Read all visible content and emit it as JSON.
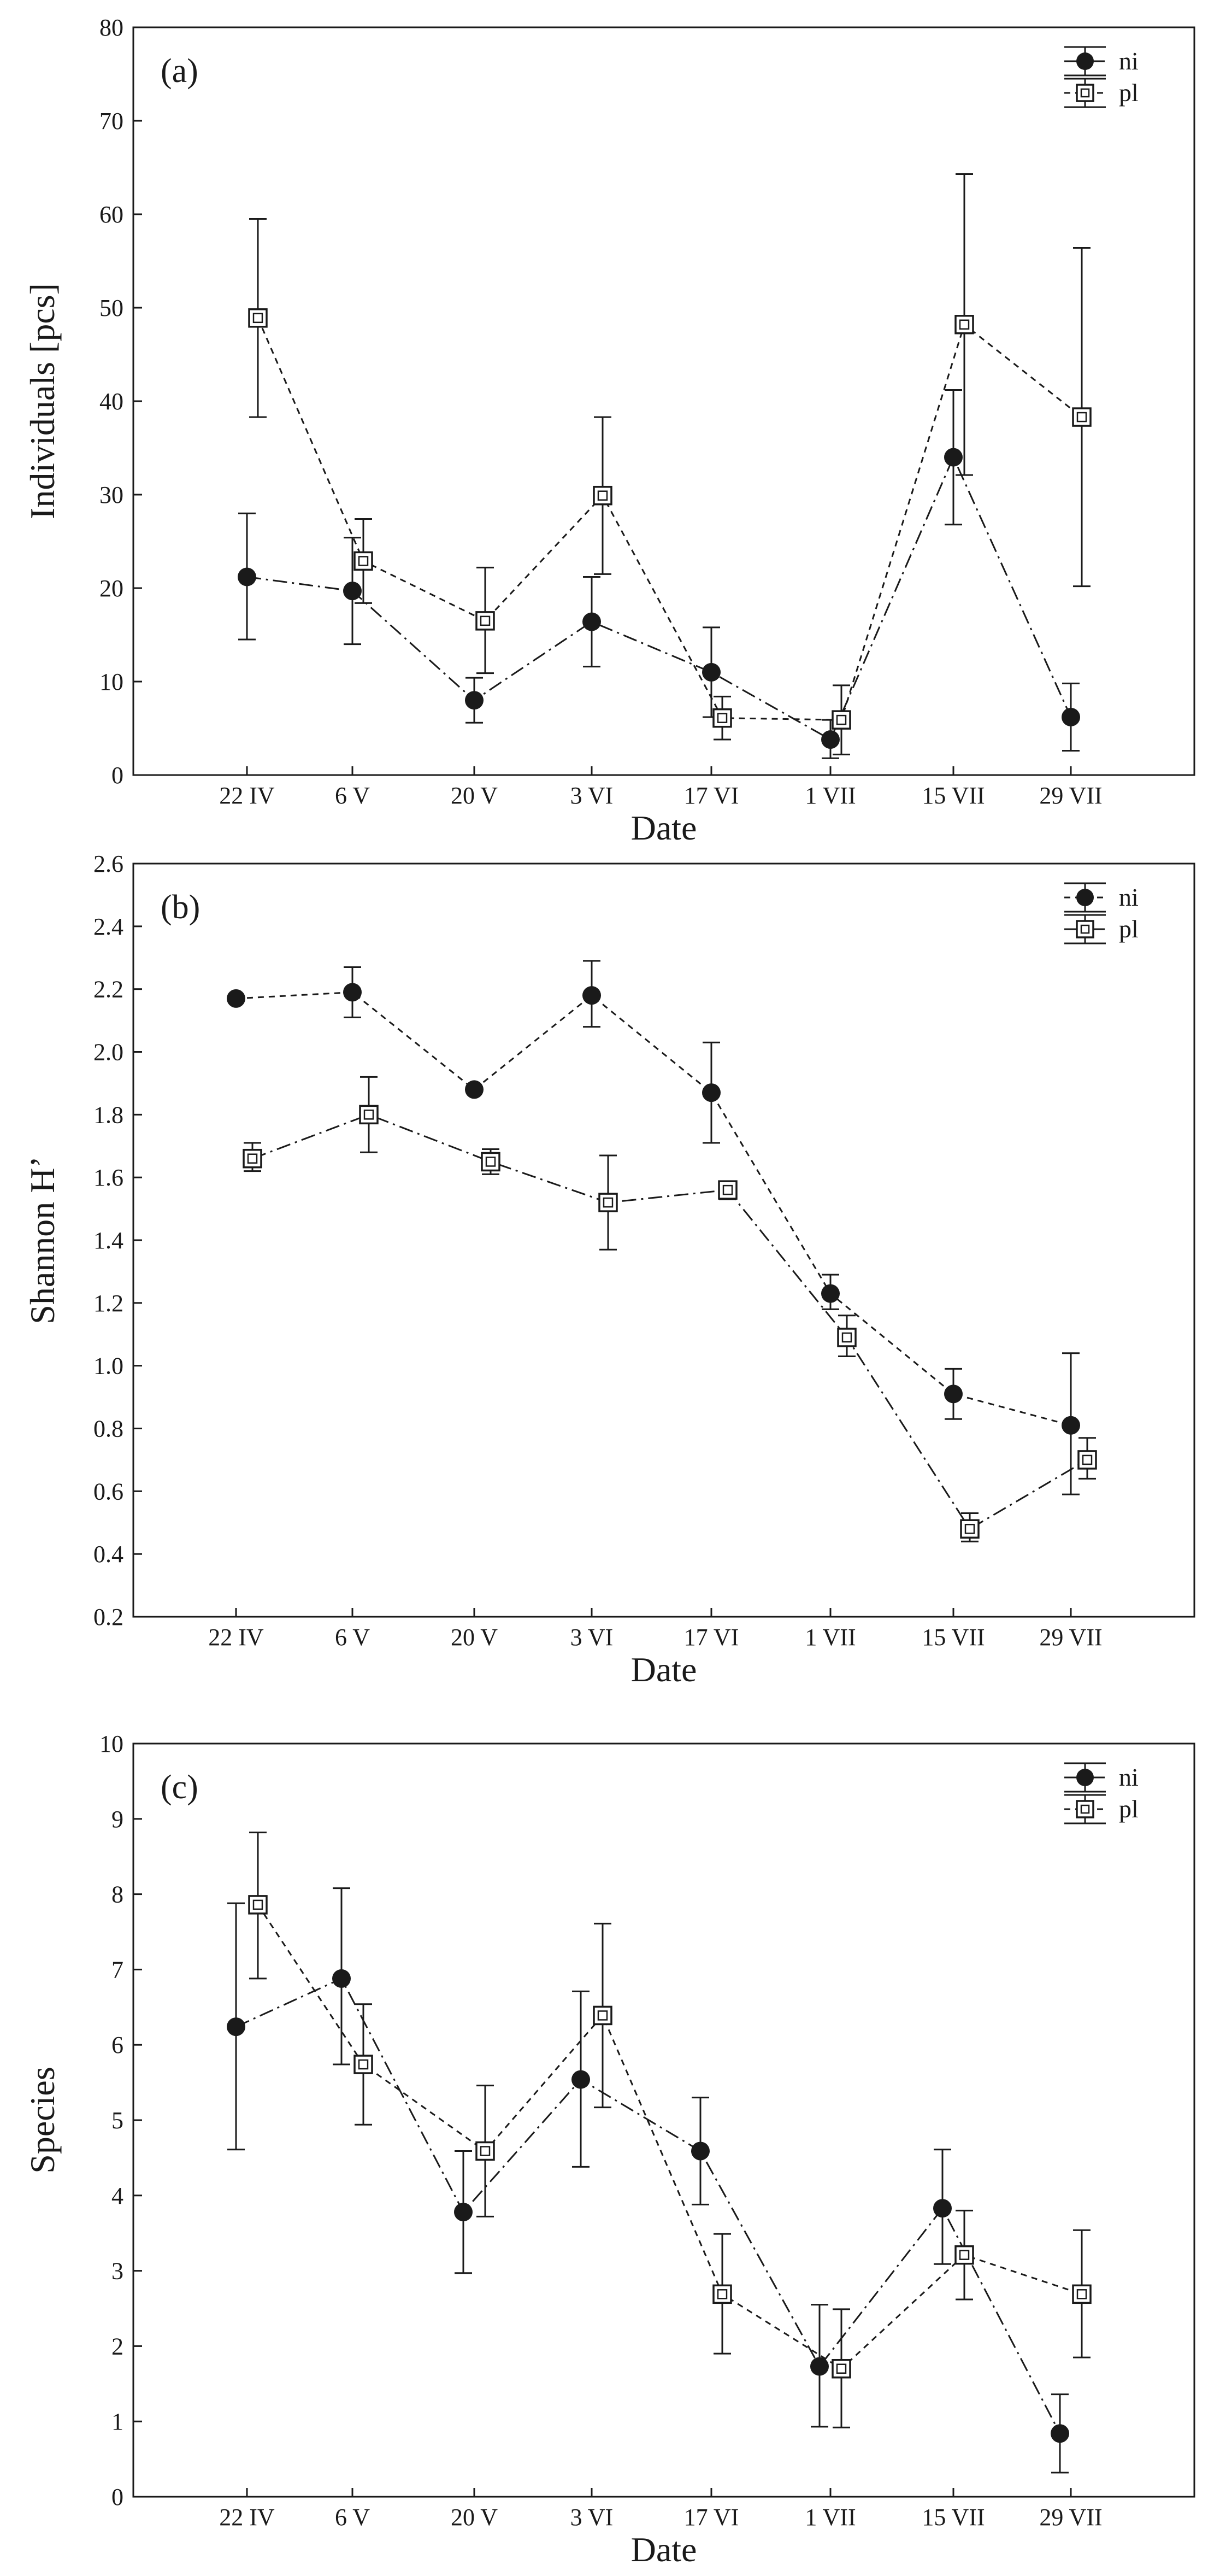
{
  "chart_data": [
    {
      "type": "line",
      "panel_label": "(a)",
      "xlabel": "Date",
      "ylabel": "Individuals [pcs]",
      "categories": [
        "22 IV",
        "6 V",
        "20 V",
        "3 VI",
        "17 VI",
        "1 VII",
        "15 VII",
        "29 VII"
      ],
      "ylim": [
        0,
        80
      ],
      "yticks": [
        "0",
        "10",
        "20",
        "30",
        "40",
        "50",
        "60",
        "70",
        "80"
      ],
      "legend_position": "top-right",
      "series": [
        {
          "name": "ni",
          "marker": "filled-circle",
          "line_style": "long-dash",
          "values": [
            21.2,
            19.7,
            8.0,
            16.4,
            11.0,
            3.8,
            34.0,
            6.2
          ],
          "upper": [
            28.0,
            25.4,
            10.4,
            21.2,
            15.8,
            5.9,
            41.2,
            9.8
          ],
          "lower": [
            14.5,
            14.0,
            5.6,
            11.6,
            6.2,
            1.8,
            26.8,
            2.6
          ]
        },
        {
          "name": "pl",
          "marker": "open-square",
          "line_style": "short-dash",
          "values": [
            48.9,
            22.9,
            16.5,
            29.9,
            6.1,
            5.9,
            48.2,
            38.3
          ],
          "upper": [
            59.5,
            27.4,
            22.2,
            38.3,
            8.4,
            9.6,
            64.3,
            56.4
          ],
          "lower": [
            38.3,
            18.4,
            10.9,
            21.5,
            3.8,
            2.2,
            32.1,
            20.2
          ]
        }
      ]
    },
    {
      "type": "line",
      "panel_label": "(b)",
      "xlabel": "Date",
      "ylabel": "Shannon H’",
      "categories": [
        "22 IV",
        "6 V",
        "20 V",
        "3 VI",
        "17 VI",
        "1 VII",
        "15 VII",
        "29 VII"
      ],
      "ylim": [
        0.2,
        2.6
      ],
      "yticks": [
        "0.2",
        "0.4",
        "0.6",
        "0.8",
        "1.0",
        "1.2",
        "1.4",
        "1.6",
        "1.8",
        "2.0",
        "2.2",
        "2.4",
        "2.6"
      ],
      "legend_position": "top-right",
      "series": [
        {
          "name": "ni",
          "marker": "filled-circle",
          "line_style": "short-dash",
          "values": [
            2.17,
            2.19,
            1.88,
            2.18,
            1.87,
            1.23,
            0.91,
            0.81
          ],
          "upper": [
            2.17,
            2.27,
            1.88,
            2.29,
            2.03,
            1.29,
            0.99,
            1.04
          ],
          "lower": [
            2.17,
            2.11,
            1.88,
            2.08,
            1.71,
            1.18,
            0.83,
            0.59
          ]
        },
        {
          "name": "pl",
          "marker": "open-square",
          "line_style": "long-dash",
          "values": [
            1.66,
            1.8,
            1.65,
            1.52,
            1.56,
            1.09,
            0.48,
            0.7
          ],
          "upper": [
            1.71,
            1.92,
            1.69,
            1.67,
            1.58,
            1.16,
            0.53,
            0.77
          ],
          "lower": [
            1.62,
            1.68,
            1.61,
            1.37,
            1.53,
            1.03,
            0.44,
            0.64
          ]
        }
      ]
    },
    {
      "type": "line",
      "panel_label": "(c)",
      "xlabel": "Date",
      "ylabel": "Species",
      "categories": [
        "22 IV",
        "6 V",
        "20 V",
        "3 VI",
        "17 VI",
        "1 VII",
        "15 VII",
        "29 VII"
      ],
      "ylim": [
        0,
        10
      ],
      "yticks": [
        "0",
        "1",
        "2",
        "3",
        "4",
        "5",
        "6",
        "7",
        "8",
        "9",
        "10"
      ],
      "legend_position": "top-right",
      "series": [
        {
          "name": "ni",
          "marker": "filled-circle",
          "line_style": "long-dash",
          "values": [
            6.24,
            6.88,
            3.78,
            5.54,
            4.59,
            1.73,
            3.83,
            0.84
          ],
          "upper": [
            7.88,
            8.08,
            4.59,
            6.71,
            5.3,
            2.55,
            4.61,
            1.36
          ],
          "lower": [
            4.61,
            5.74,
            2.97,
            4.38,
            3.88,
            0.93,
            3.09,
            0.32
          ]
        },
        {
          "name": "pl",
          "marker": "open-square",
          "line_style": "short-dash",
          "values": [
            7.86,
            5.74,
            4.59,
            6.39,
            2.69,
            1.7,
            3.21,
            2.69
          ],
          "upper": [
            8.82,
            6.54,
            5.46,
            7.61,
            3.49,
            2.49,
            3.8,
            3.54
          ],
          "lower": [
            6.88,
            4.94,
            3.72,
            5.17,
            1.9,
            0.92,
            2.62,
            1.85
          ]
        }
      ]
    }
  ]
}
